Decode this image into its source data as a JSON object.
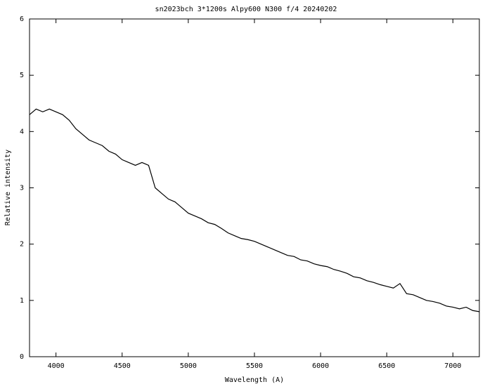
{
  "chart_data": {
    "type": "line",
    "title": "sn2023bch 3*1200s Alpy600 N300 f/4 20240202",
    "x_label": "Wavelength (A)",
    "y_label": "Relative intensity",
    "color": "#000000",
    "xlim": [
      3800,
      7200
    ],
    "ylim": [
      0,
      6
    ],
    "xticks": [
      4000,
      4500,
      5000,
      5500,
      6000,
      6500,
      7000
    ],
    "yticks": [
      0,
      1,
      2,
      3,
      4,
      5,
      6
    ],
    "grid": false,
    "x": [
      3800,
      3850,
      3900,
      3950,
      4000,
      4050,
      4100,
      4150,
      4200,
      4250,
      4300,
      4350,
      4400,
      4450,
      4500,
      4550,
      4600,
      4650,
      4700,
      4750,
      4800,
      4850,
      4900,
      4950,
      5000,
      5050,
      5100,
      5150,
      5200,
      5250,
      5300,
      5350,
      5400,
      5450,
      5500,
      5550,
      5600,
      5650,
      5700,
      5750,
      5800,
      5850,
      5900,
      5950,
      6000,
      6050,
      6100,
      6150,
      6200,
      6250,
      6300,
      6350,
      6400,
      6450,
      6500,
      6550,
      6600,
      6650,
      6700,
      6750,
      6800,
      6850,
      6900,
      6950,
      7000,
      7050,
      7100,
      7150,
      7200
    ],
    "values": [
      4.3,
      4.4,
      4.35,
      4.4,
      4.35,
      4.3,
      4.2,
      4.05,
      3.95,
      3.85,
      3.8,
      3.75,
      3.65,
      3.6,
      3.5,
      3.45,
      3.4,
      3.45,
      3.4,
      3.0,
      2.9,
      2.8,
      2.75,
      2.65,
      2.55,
      2.5,
      2.45,
      2.38,
      2.35,
      2.28,
      2.2,
      2.15,
      2.1,
      2.08,
      2.05,
      2.0,
      1.95,
      1.9,
      1.85,
      1.8,
      1.78,
      1.72,
      1.7,
      1.65,
      1.62,
      1.6,
      1.55,
      1.52,
      1.48,
      1.42,
      1.4,
      1.35,
      1.32,
      1.28,
      1.25,
      1.22,
      1.3,
      1.12,
      1.1,
      1.05,
      1.0,
      0.98,
      0.95,
      0.9,
      0.88,
      0.85,
      0.88,
      0.82,
      0.8
    ]
  }
}
